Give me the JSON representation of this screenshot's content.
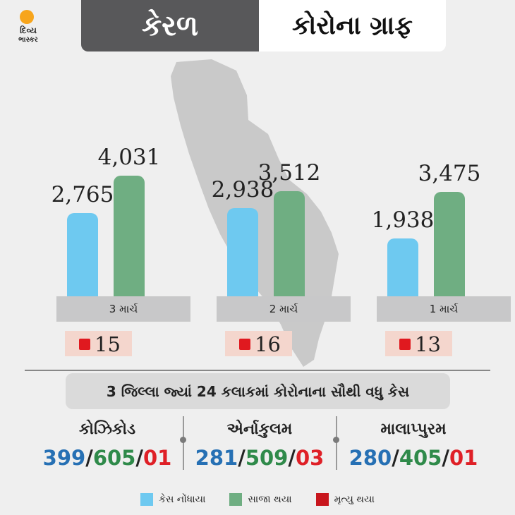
{
  "header": {
    "logo_line1": "દિવ્ય",
    "logo_line2": "ભાસ્કર",
    "state": "કેરળ",
    "title": "કોરોના ગ્રાફ"
  },
  "colors": {
    "cases": "#6ec9f0",
    "recovered": "#6fae82",
    "deaths": "#e0191f"
  },
  "chart_data": {
    "type": "bar",
    "categories": [
      "3 માર્ચ",
      "2 માર્ચ",
      "1 માર્ચ"
    ],
    "series": [
      {
        "name": "કેસ નોંધાયા",
        "values": [
          2765,
          2938,
          1938
        ],
        "labels": [
          "2,765",
          "2,938",
          "1,938"
        ]
      },
      {
        "name": "સાજા થયા",
        "values": [
          4031,
          3512,
          3475
        ],
        "labels": [
          "4,031",
          "3,512",
          "3,475"
        ]
      },
      {
        "name": "મૃત્યુ થયા",
        "values": [
          15,
          16,
          13
        ]
      }
    ]
  },
  "section_title": "3 જિલ્લા જ્યાં 24 કલાકમાં કોરોનાના સૌથી વધુ કેસ",
  "districts": [
    {
      "name": "કોઝિકોડ",
      "cases": "399",
      "recovered": "605",
      "deaths": "01"
    },
    {
      "name": "એર્નાકુલમ",
      "cases": "281",
      "recovered": "509",
      "deaths": "03"
    },
    {
      "name": "માલાપ્પુરમ",
      "cases": "280",
      "recovered": "405",
      "deaths": "01"
    }
  ],
  "legend": [
    {
      "label": "કેસ નોંધાયા",
      "color": "#6ec9f0"
    },
    {
      "label": "સાજા થયા",
      "color": "#6fae82"
    },
    {
      "label": "મૃત્યુ થયા",
      "color": "#c8161d"
    }
  ]
}
